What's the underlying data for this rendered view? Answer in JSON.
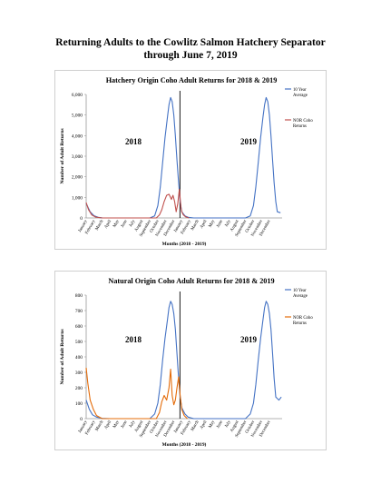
{
  "document": {
    "title_line1": "Returning Adults to the Cowlitz Salmon Hatchery Separator",
    "title_line2": "through June 7, 2019"
  },
  "chart_data": [
    {
      "type": "line",
      "title": "Hatchery Origin Coho Adult Returns for 2018 & 2019",
      "xlabel": "Months (2018 - 2019)",
      "ylabel": "Number of Adult Returns",
      "ylim": [
        0,
        6000
      ],
      "yticks": [
        "0",
        "1,000",
        "2,000",
        "3,000",
        "4,000",
        "5,000",
        "6,000"
      ],
      "year_labels": [
        "2018",
        "2019"
      ],
      "month_labels": [
        "January",
        "February",
        "March",
        "April",
        "May",
        "June",
        "July",
        "August",
        "September",
        "October",
        "November",
        "December",
        "January",
        "February",
        "March",
        "April",
        "May",
        "June",
        "July",
        "August",
        "September",
        "October",
        "November",
        "December"
      ],
      "divider_at_month": 12,
      "legend_position": "right",
      "series": [
        {
          "name": "10 Year Average",
          "color": "#4472c4",
          "points": [
            [
              0,
              700
            ],
            [
              0.5,
              300
            ],
            [
              1,
              100
            ],
            [
              1.5,
              30
            ],
            [
              2,
              5
            ],
            [
              3,
              0
            ],
            [
              8,
              0
            ],
            [
              8.6,
              100
            ],
            [
              9,
              600
            ],
            [
              9.3,
              1500
            ],
            [
              9.6,
              2700
            ],
            [
              9.9,
              3900
            ],
            [
              10.2,
              4900
            ],
            [
              10.4,
              5500
            ],
            [
              10.6,
              5850
            ],
            [
              10.8,
              5650
            ],
            [
              11,
              5000
            ],
            [
              11.2,
              4000
            ],
            [
              11.4,
              2800
            ],
            [
              11.6,
              1700
            ],
            [
              11.8,
              800
            ],
            [
              12,
              300
            ],
            [
              12.4,
              100
            ],
            [
              12.8,
              30
            ],
            [
              13.5,
              0
            ],
            [
              20,
              0
            ],
            [
              20.6,
              100
            ],
            [
              21,
              600
            ],
            [
              21.3,
              1500
            ],
            [
              21.6,
              2700
            ],
            [
              21.9,
              3900
            ],
            [
              22.2,
              4900
            ],
            [
              22.4,
              5500
            ],
            [
              22.6,
              5850
            ],
            [
              22.8,
              5650
            ],
            [
              23,
              5000
            ],
            [
              23.2,
              4000
            ],
            [
              23.4,
              2800
            ],
            [
              23.6,
              1700
            ],
            [
              23.8,
              800
            ],
            [
              24,
              300
            ],
            [
              24.4,
              250
            ]
          ]
        },
        {
          "name": "NOR Coho Returns",
          "color": "#c0504d",
          "points": [
            [
              0,
              750
            ],
            [
              0.3,
              400
            ],
            [
              0.7,
              150
            ],
            [
              1.2,
              40
            ],
            [
              2,
              0
            ],
            [
              8.8,
              0
            ],
            [
              9.2,
              150
            ],
            [
              9.5,
              400
            ],
            [
              9.8,
              800
            ],
            [
              10.1,
              1100
            ],
            [
              10.4,
              1150
            ],
            [
              10.7,
              900
            ],
            [
              10.9,
              1100
            ],
            [
              11.1,
              800
            ],
            [
              11.3,
              300
            ],
            [
              11.5,
              700
            ],
            [
              11.7,
              1400
            ],
            [
              11.9,
              500
            ],
            [
              12,
              300
            ],
            [
              12.2,
              150
            ],
            [
              12.5,
              50
            ],
            [
              12.9,
              0
            ]
          ]
        }
      ]
    },
    {
      "type": "line",
      "title": "Natural Origin Coho Adult Returns for 2018 & 2019",
      "xlabel": "Months (2018 - 2019)",
      "ylabel": "Number of Adult Returns",
      "ylim": [
        0,
        800
      ],
      "yticks": [
        "0",
        "100",
        "200",
        "300",
        "400",
        "500",
        "600",
        "700",
        "800"
      ],
      "year_labels": [
        "2018",
        "2019"
      ],
      "month_labels": [
        "January",
        "February",
        "March",
        "April",
        "May",
        "June",
        "July",
        "August",
        "September",
        "October",
        "November",
        "December",
        "January",
        "February",
        "March",
        "April",
        "May",
        "June",
        "July",
        "August",
        "September",
        "October",
        "November",
        "December"
      ],
      "divider_at_month": 12,
      "legend_position": "right",
      "series": [
        {
          "name": "10 Year Average",
          "color": "#4472c4",
          "points": [
            [
              0,
              120
            ],
            [
              0.4,
              60
            ],
            [
              0.8,
              25
            ],
            [
              1.3,
              10
            ],
            [
              2,
              2
            ],
            [
              3,
              0
            ],
            [
              8,
              0
            ],
            [
              8.6,
              30
            ],
            [
              9,
              100
            ],
            [
              9.3,
              220
            ],
            [
              9.6,
              380
            ],
            [
              9.9,
              520
            ],
            [
              10.2,
              640
            ],
            [
              10.4,
              720
            ],
            [
              10.6,
              760
            ],
            [
              10.8,
              740
            ],
            [
              11,
              680
            ],
            [
              11.2,
              580
            ],
            [
              11.4,
              420
            ],
            [
              11.6,
              260
            ],
            [
              11.8,
              140
            ],
            [
              12,
              70
            ],
            [
              12.4,
              30
            ],
            [
              12.8,
              10
            ],
            [
              13.5,
              0
            ],
            [
              20,
              0
            ],
            [
              20.6,
              30
            ],
            [
              21,
              100
            ],
            [
              21.3,
              220
            ],
            [
              21.6,
              380
            ],
            [
              21.9,
              520
            ],
            [
              22.2,
              640
            ],
            [
              22.4,
              720
            ],
            [
              22.6,
              760
            ],
            [
              22.8,
              740
            ],
            [
              23,
              680
            ],
            [
              23.2,
              580
            ],
            [
              23.4,
              420
            ],
            [
              23.6,
              260
            ],
            [
              23.8,
              140
            ],
            [
              24,
              130
            ],
            [
              24.2,
              120
            ],
            [
              24.5,
              140
            ]
          ]
        },
        {
          "name": "NOR Coho Returns",
          "color": "#e46c0a",
          "points": [
            [
              0,
              330
            ],
            [
              0.2,
              230
            ],
            [
              0.5,
              120
            ],
            [
              0.9,
              60
            ],
            [
              1.3,
              20
            ],
            [
              2,
              0
            ],
            [
              8.8,
              0
            ],
            [
              9.2,
              40
            ],
            [
              9.5,
              110
            ],
            [
              9.8,
              150
            ],
            [
              10.1,
              120
            ],
            [
              10.4,
              200
            ],
            [
              10.6,
              320
            ],
            [
              10.8,
              150
            ],
            [
              11,
              90
            ],
            [
              11.2,
              120
            ],
            [
              11.4,
              200
            ],
            [
              11.6,
              270
            ],
            [
              11.8,
              150
            ],
            [
              12,
              60
            ],
            [
              12.3,
              20
            ],
            [
              12.7,
              0
            ]
          ]
        }
      ]
    }
  ]
}
